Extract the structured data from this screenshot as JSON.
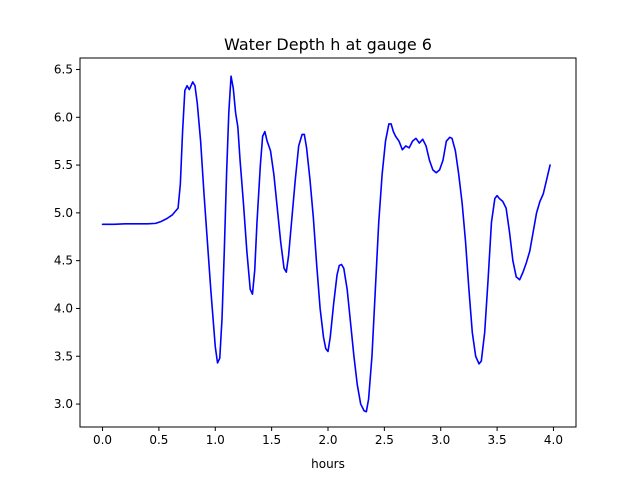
{
  "chart_data": {
    "type": "line",
    "title": "Water Depth h at gauge 6",
    "xlabel": "hours",
    "ylabel": "",
    "xlim": [
      -0.2,
      4.2
    ],
    "ylim": [
      2.76,
      6.62
    ],
    "x_ticks": [
      0.0,
      0.5,
      1.0,
      1.5,
      2.0,
      2.5,
      3.0,
      3.5,
      4.0
    ],
    "x_tick_labels": [
      "0.0",
      "0.5",
      "1.0",
      "1.5",
      "2.0",
      "2.5",
      "3.0",
      "3.5",
      "4.0"
    ],
    "y_ticks": [
      3.0,
      3.5,
      4.0,
      4.5,
      5.0,
      5.5,
      6.0,
      6.5
    ],
    "y_tick_labels": [
      "3.0",
      "3.5",
      "4.0",
      "4.5",
      "5.0",
      "5.5",
      "6.0",
      "6.5"
    ],
    "grid": false,
    "series": [
      {
        "color": "#0000ff",
        "points": [
          [
            0.0,
            4.88
          ],
          [
            0.1,
            4.88
          ],
          [
            0.2,
            4.885
          ],
          [
            0.3,
            4.885
          ],
          [
            0.4,
            4.885
          ],
          [
            0.47,
            4.89
          ],
          [
            0.52,
            4.91
          ],
          [
            0.57,
            4.94
          ],
          [
            0.62,
            4.98
          ],
          [
            0.67,
            5.05
          ],
          [
            0.69,
            5.3
          ],
          [
            0.71,
            5.85
          ],
          [
            0.73,
            6.28
          ],
          [
            0.75,
            6.33
          ],
          [
            0.77,
            6.29
          ],
          [
            0.8,
            6.37
          ],
          [
            0.82,
            6.33
          ],
          [
            0.84,
            6.15
          ],
          [
            0.87,
            5.75
          ],
          [
            0.9,
            5.2
          ],
          [
            0.93,
            4.7
          ],
          [
            0.96,
            4.2
          ],
          [
            0.98,
            3.9
          ],
          [
            1.0,
            3.6
          ],
          [
            1.02,
            3.43
          ],
          [
            1.04,
            3.48
          ],
          [
            1.06,
            3.9
          ],
          [
            1.08,
            4.6
          ],
          [
            1.1,
            5.4
          ],
          [
            1.12,
            6.05
          ],
          [
            1.14,
            6.43
          ],
          [
            1.16,
            6.3
          ],
          [
            1.18,
            6.05
          ],
          [
            1.2,
            5.9
          ],
          [
            1.22,
            5.55
          ],
          [
            1.25,
            5.1
          ],
          [
            1.28,
            4.6
          ],
          [
            1.31,
            4.2
          ],
          [
            1.33,
            4.15
          ],
          [
            1.35,
            4.4
          ],
          [
            1.37,
            4.9
          ],
          [
            1.4,
            5.5
          ],
          [
            1.42,
            5.8
          ],
          [
            1.44,
            5.85
          ],
          [
            1.46,
            5.75
          ],
          [
            1.49,
            5.65
          ],
          [
            1.52,
            5.4
          ],
          [
            1.55,
            5.05
          ],
          [
            1.58,
            4.7
          ],
          [
            1.61,
            4.42
          ],
          [
            1.63,
            4.38
          ],
          [
            1.65,
            4.55
          ],
          [
            1.68,
            4.95
          ],
          [
            1.71,
            5.35
          ],
          [
            1.74,
            5.7
          ],
          [
            1.77,
            5.82
          ],
          [
            1.79,
            5.82
          ],
          [
            1.81,
            5.68
          ],
          [
            1.84,
            5.35
          ],
          [
            1.87,
            4.95
          ],
          [
            1.9,
            4.45
          ],
          [
            1.93,
            4.0
          ],
          [
            1.96,
            3.7
          ],
          [
            1.98,
            3.58
          ],
          [
            2.0,
            3.55
          ],
          [
            2.02,
            3.7
          ],
          [
            2.05,
            4.05
          ],
          [
            2.08,
            4.35
          ],
          [
            2.1,
            4.45
          ],
          [
            2.12,
            4.46
          ],
          [
            2.14,
            4.42
          ],
          [
            2.17,
            4.2
          ],
          [
            2.2,
            3.85
          ],
          [
            2.23,
            3.5
          ],
          [
            2.26,
            3.2
          ],
          [
            2.29,
            3.0
          ],
          [
            2.32,
            2.93
          ],
          [
            2.34,
            2.92
          ],
          [
            2.36,
            3.05
          ],
          [
            2.39,
            3.5
          ],
          [
            2.42,
            4.2
          ],
          [
            2.45,
            4.9
          ],
          [
            2.48,
            5.4
          ],
          [
            2.51,
            5.75
          ],
          [
            2.54,
            5.93
          ],
          [
            2.56,
            5.93
          ],
          [
            2.58,
            5.85
          ],
          [
            2.6,
            5.8
          ],
          [
            2.63,
            5.75
          ],
          [
            2.66,
            5.66
          ],
          [
            2.69,
            5.7
          ],
          [
            2.72,
            5.68
          ],
          [
            2.75,
            5.75
          ],
          [
            2.78,
            5.78
          ],
          [
            2.81,
            5.73
          ],
          [
            2.84,
            5.77
          ],
          [
            2.87,
            5.7
          ],
          [
            2.9,
            5.55
          ],
          [
            2.93,
            5.45
          ],
          [
            2.96,
            5.42
          ],
          [
            2.99,
            5.45
          ],
          [
            3.02,
            5.55
          ],
          [
            3.05,
            5.75
          ],
          [
            3.08,
            5.79
          ],
          [
            3.1,
            5.78
          ],
          [
            3.13,
            5.65
          ],
          [
            3.16,
            5.4
          ],
          [
            3.19,
            5.1
          ],
          [
            3.22,
            4.7
          ],
          [
            3.25,
            4.2
          ],
          [
            3.28,
            3.75
          ],
          [
            3.31,
            3.5
          ],
          [
            3.34,
            3.42
          ],
          [
            3.36,
            3.45
          ],
          [
            3.39,
            3.75
          ],
          [
            3.42,
            4.3
          ],
          [
            3.45,
            4.9
          ],
          [
            3.48,
            5.15
          ],
          [
            3.5,
            5.18
          ],
          [
            3.52,
            5.15
          ],
          [
            3.55,
            5.12
          ],
          [
            3.58,
            5.05
          ],
          [
            3.61,
            4.8
          ],
          [
            3.64,
            4.5
          ],
          [
            3.67,
            4.33
          ],
          [
            3.7,
            4.3
          ],
          [
            3.73,
            4.38
          ],
          [
            3.76,
            4.48
          ],
          [
            3.79,
            4.6
          ],
          [
            3.82,
            4.8
          ],
          [
            3.85,
            5.0
          ],
          [
            3.88,
            5.12
          ],
          [
            3.91,
            5.2
          ],
          [
            3.94,
            5.35
          ],
          [
            3.97,
            5.5
          ]
        ]
      }
    ]
  }
}
